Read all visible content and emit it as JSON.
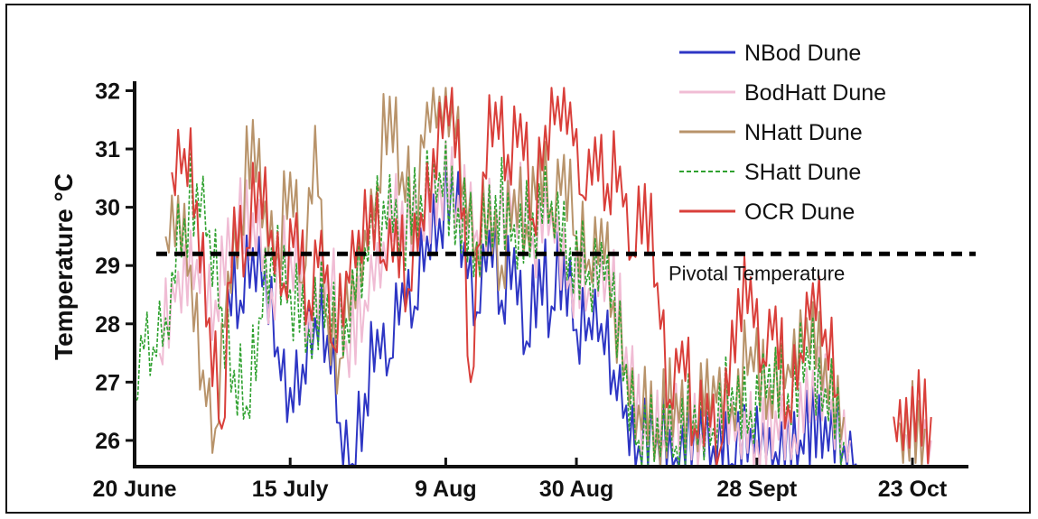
{
  "chart_data": {
    "type": "line",
    "ylabel": "Temperature °C",
    "xlabel": "",
    "ylim": [
      25.55,
      32.1
    ],
    "y_ticks": [
      26,
      27,
      28,
      29,
      30,
      31,
      32
    ],
    "x_range": [
      "2000-06-20",
      "2000-11-01"
    ],
    "x_ticks": [
      {
        "date": "2000-06-20",
        "label": "20 June"
      },
      {
        "date": "2000-07-15",
        "label": "15 July"
      },
      {
        "date": "2000-08-09",
        "label": "9 Aug"
      },
      {
        "date": "2000-08-30",
        "label": "30 Aug"
      },
      {
        "date": "2000-09-28",
        "label": "28 Sept"
      },
      {
        "date": "2000-10-23",
        "label": "23 Oct"
      }
    ],
    "legend_position": "top-right",
    "grid": false,
    "reference_line": {
      "y": 29.2,
      "label": "Pivotal Temperature",
      "style": "dashed",
      "color": "#000000"
    },
    "series": [
      {
        "name": "NBod Dune",
        "color": "#2e36c4",
        "style": "solid",
        "points": [
          [
            "2000-07-05",
            28.6
          ],
          [
            "2000-07-07",
            28.4
          ],
          [
            "2000-07-09",
            29.3
          ],
          [
            "2000-07-11",
            28.9
          ],
          [
            "2000-07-13",
            27.6
          ],
          [
            "2000-07-15",
            26.9
          ],
          [
            "2000-07-17",
            27.3
          ],
          [
            "2000-07-19",
            28.1
          ],
          [
            "2000-07-21",
            27.8
          ],
          [
            "2000-07-23",
            26.3
          ],
          [
            "2000-07-25",
            25.6
          ],
          [
            "2000-07-27",
            26.8
          ],
          [
            "2000-07-29",
            27.9
          ],
          [
            "2000-07-31",
            27.4
          ],
          [
            "2000-08-02",
            28.7
          ],
          [
            "2000-08-04",
            28.3
          ],
          [
            "2000-08-06",
            29.5
          ],
          [
            "2000-08-08",
            29.8
          ],
          [
            "2000-08-10",
            30.6
          ],
          [
            "2000-08-12",
            29.4
          ],
          [
            "2000-08-14",
            28.2
          ],
          [
            "2000-08-16",
            29.6
          ],
          [
            "2000-08-18",
            28.4
          ],
          [
            "2000-08-20",
            29.3
          ],
          [
            "2000-08-22",
            27.7
          ],
          [
            "2000-08-24",
            29.1
          ],
          [
            "2000-08-26",
            28.3
          ],
          [
            "2000-08-28",
            29.2
          ],
          [
            "2000-08-30",
            27.9
          ],
          [
            "2000-09-01",
            28.1
          ],
          [
            "2000-09-03",
            28.0
          ],
          [
            "2000-09-05",
            27.2
          ],
          [
            "2000-09-07",
            26.6
          ],
          [
            "2000-09-09",
            25.9
          ],
          [
            "2000-09-12",
            26.1
          ],
          [
            "2000-09-15",
            25.7
          ],
          [
            "2000-09-18",
            26.3
          ],
          [
            "2000-09-21",
            25.9
          ],
          [
            "2000-09-24",
            25.6
          ],
          [
            "2000-09-27",
            26.2
          ],
          [
            "2000-10-01",
            25.8
          ],
          [
            "2000-10-05",
            26.0
          ],
          [
            "2000-10-09",
            26.4
          ],
          [
            "2000-10-12",
            25.9
          ],
          [
            "2000-10-14",
            25.6
          ]
        ]
      },
      {
        "name": "BodHatt Dune",
        "color": "#f0bcd4",
        "style": "solid",
        "points": [
          [
            "2000-06-24",
            27.5
          ],
          [
            "2000-06-27",
            28.9
          ],
          [
            "2000-06-30",
            29.1
          ],
          [
            "2000-07-03",
            28.4
          ],
          [
            "2000-07-06",
            29.6
          ],
          [
            "2000-07-09",
            29.9
          ],
          [
            "2000-07-12",
            28.6
          ],
          [
            "2000-07-15",
            29.3
          ],
          [
            "2000-07-18",
            28.2
          ],
          [
            "2000-07-21",
            28.9
          ],
          [
            "2000-07-24",
            27.7
          ],
          [
            "2000-07-27",
            28.4
          ],
          [
            "2000-07-30",
            29.4
          ],
          [
            "2000-08-02",
            30.1
          ],
          [
            "2000-08-05",
            29.8
          ],
          [
            "2000-08-08",
            30.5
          ],
          [
            "2000-08-11",
            30.2
          ],
          [
            "2000-08-14",
            29.6
          ],
          [
            "2000-08-17",
            29.9
          ],
          [
            "2000-08-20",
            30.3
          ],
          [
            "2000-08-23",
            29.5
          ],
          [
            "2000-08-26",
            29.9
          ],
          [
            "2000-08-29",
            28.8
          ],
          [
            "2000-09-01",
            28.6
          ],
          [
            "2000-09-04",
            29.0
          ],
          [
            "2000-09-07",
            27.6
          ],
          [
            "2000-09-10",
            26.3
          ],
          [
            "2000-09-13",
            26.0
          ],
          [
            "2000-09-16",
            26.5
          ],
          [
            "2000-09-19",
            26.1
          ],
          [
            "2000-09-22",
            26.6
          ],
          [
            "2000-09-25",
            26.3
          ],
          [
            "2000-09-28",
            26.0
          ],
          [
            "2000-10-01",
            26.5
          ],
          [
            "2000-10-04",
            26.1
          ],
          [
            "2000-10-07",
            27.2
          ],
          [
            "2000-10-10",
            26.7
          ],
          [
            "2000-10-13",
            26.0
          ],
          [
            "2000-10-22",
            26.1
          ],
          [
            "2000-10-26",
            26.0
          ]
        ]
      },
      {
        "name": "NHatt Dune",
        "color": "#b8936a",
        "style": "solid",
        "points": [
          [
            "2000-06-25",
            29.5
          ],
          [
            "2000-06-27",
            30.2
          ],
          [
            "2000-06-29",
            29.0
          ],
          [
            "2000-07-01",
            27.2
          ],
          [
            "2000-07-03",
            26.2
          ],
          [
            "2000-07-05",
            28.9
          ],
          [
            "2000-07-07",
            29.8
          ],
          [
            "2000-07-09",
            31.5
          ],
          [
            "2000-07-11",
            30.1
          ],
          [
            "2000-07-13",
            29.2
          ],
          [
            "2000-07-15",
            30.6
          ],
          [
            "2000-07-17",
            28.7
          ],
          [
            "2000-07-19",
            31.4
          ],
          [
            "2000-07-21",
            28.1
          ],
          [
            "2000-07-23",
            27.4
          ],
          [
            "2000-07-25",
            28.9
          ],
          [
            "2000-07-27",
            29.6
          ],
          [
            "2000-07-29",
            30.4
          ],
          [
            "2000-07-31",
            31.9
          ],
          [
            "2000-08-02",
            30.6
          ],
          [
            "2000-08-04",
            29.9
          ],
          [
            "2000-08-06",
            31.8
          ],
          [
            "2000-08-08",
            31.9
          ],
          [
            "2000-08-10",
            31.8
          ],
          [
            "2000-08-12",
            30.5
          ],
          [
            "2000-08-14",
            29.4
          ],
          [
            "2000-08-16",
            30.1
          ],
          [
            "2000-08-18",
            29.0
          ],
          [
            "2000-08-20",
            30.3
          ],
          [
            "2000-08-22",
            29.7
          ],
          [
            "2000-08-24",
            31.1
          ],
          [
            "2000-08-26",
            30.0
          ],
          [
            "2000-08-28",
            30.9
          ],
          [
            "2000-08-30",
            29.5
          ],
          [
            "2000-09-01",
            29.1
          ],
          [
            "2000-09-03",
            29.8
          ],
          [
            "2000-09-05",
            28.4
          ],
          [
            "2000-09-07",
            27.3
          ],
          [
            "2000-09-09",
            26.6
          ],
          [
            "2000-09-12",
            26.2
          ],
          [
            "2000-09-15",
            26.8
          ],
          [
            "2000-09-18",
            26.3
          ],
          [
            "2000-09-21",
            27.1
          ],
          [
            "2000-09-24",
            26.6
          ],
          [
            "2000-09-27",
            27.6
          ],
          [
            "2000-09-30",
            26.9
          ],
          [
            "2000-10-03",
            27.3
          ],
          [
            "2000-10-06",
            28.1
          ],
          [
            "2000-10-09",
            27.4
          ],
          [
            "2000-10-12",
            26.4
          ],
          [
            "2000-10-21",
            26.3
          ],
          [
            "2000-10-25",
            26.2
          ]
        ]
      },
      {
        "name": "SHatt Dune",
        "color": "#2fa12f",
        "style": "dashed",
        "points": [
          [
            "2000-06-20",
            26.6
          ],
          [
            "2000-06-21",
            27.8
          ],
          [
            "2000-06-22",
            28.2
          ],
          [
            "2000-06-23",
            27.6
          ],
          [
            "2000-06-24",
            28.4
          ],
          [
            "2000-06-25",
            28.1
          ],
          [
            "2000-06-26",
            28.9
          ],
          [
            "2000-06-28",
            29.8
          ],
          [
            "2000-06-30",
            30.4
          ],
          [
            "2000-07-02",
            29.6
          ],
          [
            "2000-07-04",
            28.3
          ],
          [
            "2000-07-06",
            27.2
          ],
          [
            "2000-07-08",
            26.6
          ],
          [
            "2000-07-10",
            28.1
          ],
          [
            "2000-07-12",
            29.3
          ],
          [
            "2000-07-15",
            28.6
          ],
          [
            "2000-07-18",
            27.9
          ],
          [
            "2000-07-21",
            28.5
          ],
          [
            "2000-07-24",
            28.1
          ],
          [
            "2000-07-27",
            29.3
          ],
          [
            "2000-07-30",
            30.1
          ],
          [
            "2000-08-02",
            29.6
          ],
          [
            "2000-08-05",
            30.2
          ],
          [
            "2000-08-08",
            30.6
          ],
          [
            "2000-08-11",
            30.0
          ],
          [
            "2000-08-14",
            29.4
          ],
          [
            "2000-08-17",
            30.2
          ],
          [
            "2000-08-20",
            29.7
          ],
          [
            "2000-08-23",
            29.9
          ],
          [
            "2000-08-26",
            30.1
          ],
          [
            "2000-08-29",
            29.3
          ],
          [
            "2000-09-01",
            28.9
          ],
          [
            "2000-09-04",
            29.2
          ],
          [
            "2000-09-07",
            27.3
          ],
          [
            "2000-09-09",
            26.0
          ],
          [
            "2000-09-12",
            26.4
          ],
          [
            "2000-09-15",
            25.9
          ],
          [
            "2000-09-18",
            26.6
          ],
          [
            "2000-09-21",
            26.2
          ],
          [
            "2000-09-24",
            26.9
          ],
          [
            "2000-09-27",
            26.5
          ],
          [
            "2000-09-30",
            27.3
          ],
          [
            "2000-10-03",
            26.8
          ],
          [
            "2000-10-06",
            27.6
          ],
          [
            "2000-10-09",
            26.9
          ],
          [
            "2000-10-12",
            26.0
          ],
          [
            "2000-10-23",
            26.2
          ]
        ]
      },
      {
        "name": "OCR Dune",
        "color": "#d93f3a",
        "style": "solid",
        "points": [
          [
            "2000-06-26",
            30.6
          ],
          [
            "2000-06-28",
            31.0
          ],
          [
            "2000-06-30",
            30.1
          ],
          [
            "2000-07-02",
            28.1
          ],
          [
            "2000-07-04",
            26.2
          ],
          [
            "2000-07-06",
            30.0
          ],
          [
            "2000-07-08",
            29.3
          ],
          [
            "2000-07-10",
            30.6
          ],
          [
            "2000-07-12",
            29.6
          ],
          [
            "2000-07-14",
            28.7
          ],
          [
            "2000-07-16",
            29.9
          ],
          [
            "2000-07-18",
            28.4
          ],
          [
            "2000-07-20",
            29.6
          ],
          [
            "2000-07-22",
            27.6
          ],
          [
            "2000-07-24",
            28.9
          ],
          [
            "2000-07-26",
            29.6
          ],
          [
            "2000-07-28",
            30.2
          ],
          [
            "2000-07-30",
            29.1
          ],
          [
            "2000-08-01",
            29.8
          ],
          [
            "2000-08-03",
            28.6
          ],
          [
            "2000-08-05",
            29.9
          ],
          [
            "2000-08-07",
            31.0
          ],
          [
            "2000-08-09",
            31.9
          ],
          [
            "2000-08-11",
            31.5
          ],
          [
            "2000-08-13",
            27.0
          ],
          [
            "2000-08-15",
            30.6
          ],
          [
            "2000-08-17",
            31.8
          ],
          [
            "2000-08-19",
            30.9
          ],
          [
            "2000-08-21",
            31.6
          ],
          [
            "2000-08-23",
            29.8
          ],
          [
            "2000-08-25",
            31.4
          ],
          [
            "2000-08-27",
            31.9
          ],
          [
            "2000-08-29",
            31.8
          ],
          [
            "2000-08-31",
            30.2
          ],
          [
            "2000-09-02",
            31.2
          ],
          [
            "2000-09-04",
            30.4
          ],
          [
            "2000-09-06",
            30.7
          ],
          [
            "2000-09-08",
            29.2
          ],
          [
            "2000-09-10",
            30.4
          ],
          [
            "2000-09-12",
            28.7
          ],
          [
            "2000-09-14",
            26.7
          ],
          [
            "2000-09-16",
            27.7
          ],
          [
            "2000-09-18",
            26.2
          ],
          [
            "2000-09-20",
            26.8
          ],
          [
            "2000-09-22",
            25.8
          ],
          [
            "2000-09-25",
            28.6
          ],
          [
            "2000-09-27",
            28.8
          ],
          [
            "2000-09-29",
            27.4
          ],
          [
            "2000-10-01",
            28.3
          ],
          [
            "2000-10-03",
            26.6
          ],
          [
            "2000-10-05",
            27.5
          ],
          [
            "2000-10-07",
            28.7
          ],
          [
            "2000-10-09",
            27.9
          ],
          [
            "2000-10-11",
            26.8
          ],
          [
            "2000-10-20",
            26.4
          ],
          [
            "2000-10-26",
            26.4
          ]
        ]
      }
    ]
  }
}
